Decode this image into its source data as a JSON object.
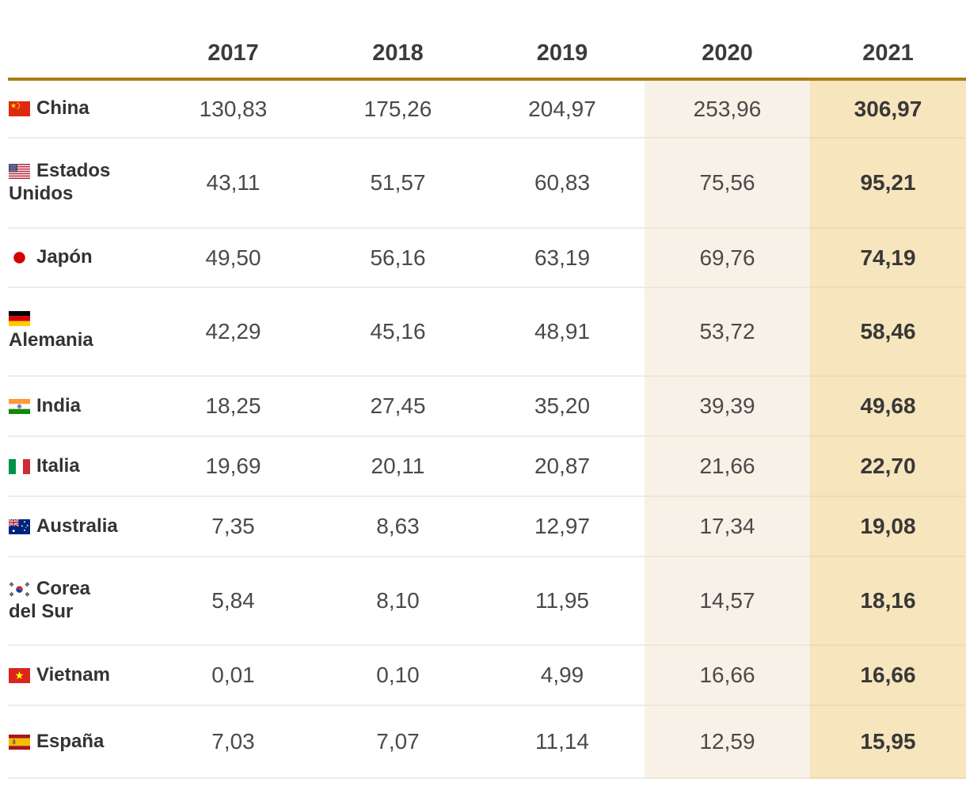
{
  "chart_data": {
    "type": "table",
    "columns": [
      "2017",
      "2018",
      "2019",
      "2020",
      "2021"
    ],
    "rows": [
      {
        "country": "China",
        "flag": "china",
        "values": [
          "130,83",
          "175,26",
          "204,97",
          "253,96",
          "306,97"
        ]
      },
      {
        "country": "Estados\nUnidos",
        "flag": "usa",
        "values": [
          "43,11",
          "51,57",
          "60,83",
          "75,56",
          "95,21"
        ]
      },
      {
        "country": "Japón",
        "flag": "japan",
        "values": [
          "49,50",
          "56,16",
          "63,19",
          "69,76",
          "74,19"
        ]
      },
      {
        "country": "Alemania",
        "flag": "germany",
        "flag_on_own_line": true,
        "values": [
          "42,29",
          "45,16",
          "48,91",
          "53,72",
          "58,46"
        ]
      },
      {
        "country": "India",
        "flag": "india",
        "values": [
          "18,25",
          "27,45",
          "35,20",
          "39,39",
          "49,68"
        ]
      },
      {
        "country": "Italia",
        "flag": "italy",
        "values": [
          "19,69",
          "20,11",
          "20,87",
          "21,66",
          "22,70"
        ]
      },
      {
        "country": "Australia",
        "flag": "australia",
        "values": [
          "7,35",
          "8,63",
          "12,97",
          "17,34",
          "19,08"
        ]
      },
      {
        "country": "Corea\ndel Sur",
        "flag": "south-korea",
        "values": [
          "5,84",
          "8,10",
          "11,95",
          "14,57",
          "18,16"
        ]
      },
      {
        "country": "Vietnam",
        "flag": "vietnam",
        "values": [
          "0,01",
          "0,10",
          "4,99",
          "16,66",
          "16,66"
        ]
      },
      {
        "country": "España",
        "flag": "spain",
        "values": [
          "7,03",
          "7,07",
          "11,14",
          "12,59",
          "15,95"
        ]
      }
    ],
    "decimal_format": "comma",
    "highlighted_columns": {
      "2020": "light-beige",
      "2021": "strong-beige"
    }
  },
  "colors": {
    "header_rule": "#ab7d17",
    "col_2020_bg": "#f8f1e7",
    "col_2021_bg": "#f7e5bd",
    "row_divider": "#ececec",
    "header_text": "#3b3b3b",
    "value_text": "#4a4a4a",
    "country_text": "#333333"
  }
}
